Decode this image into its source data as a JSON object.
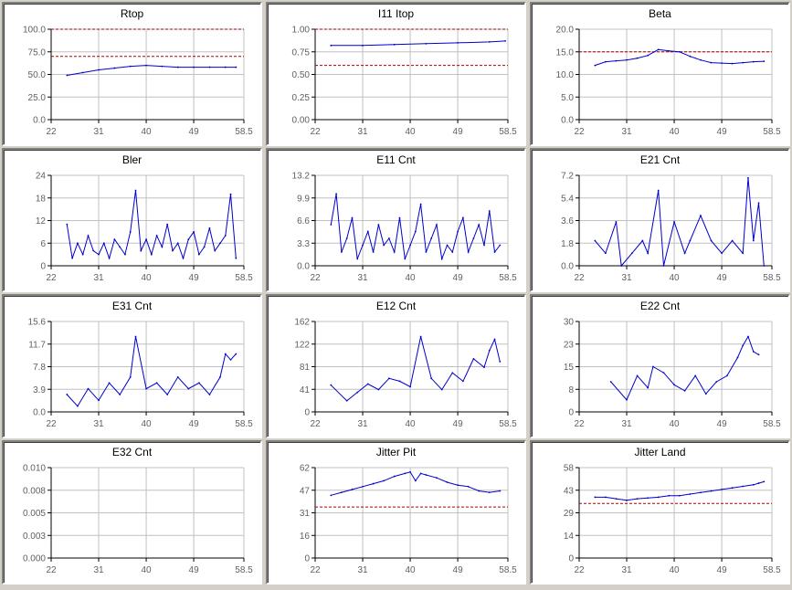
{
  "window": {
    "background": "#d4d0c8"
  },
  "style": {
    "line_color": "#0000cc",
    "limit_color": "#aa0000",
    "grid_color": "#c0c0c0",
    "axis_color": "#000000"
  },
  "chart_data": [
    {
      "type": "line",
      "title": "Rtop",
      "xticks": [
        "22",
        "31",
        "40",
        "49",
        "58.5"
      ],
      "xlim": [
        22,
        58.5
      ],
      "yticks": [
        "100.0",
        "75.0",
        "50.0",
        "25.0",
        "0.0"
      ],
      "ylim": [
        0,
        100
      ],
      "limits": [
        100,
        70
      ],
      "series": [
        {
          "x": [
            25,
            28,
            31,
            34,
            37,
            40,
            43,
            46,
            49,
            52,
            55,
            57
          ],
          "y": [
            49,
            52,
            55,
            57,
            59,
            60,
            59,
            58,
            58,
            58,
            58,
            58
          ]
        }
      ]
    },
    {
      "type": "line",
      "title": "I11 Itop",
      "xticks": [
        "22",
        "31",
        "40",
        "49",
        "58.5"
      ],
      "xlim": [
        22,
        58.5
      ],
      "yticks": [
        "1.00",
        "0.75",
        "0.50",
        "0.25",
        "0.00"
      ],
      "ylim": [
        0,
        1
      ],
      "limits": [
        1.0,
        0.6
      ],
      "series": [
        {
          "x": [
            25,
            31,
            37,
            43,
            49,
            55,
            58
          ],
          "y": [
            0.82,
            0.82,
            0.83,
            0.84,
            0.85,
            0.86,
            0.87
          ]
        }
      ]
    },
    {
      "type": "line",
      "title": "Beta",
      "xticks": [
        "22",
        "31",
        "40",
        "49",
        "58.5"
      ],
      "xlim": [
        22,
        58.5
      ],
      "yticks": [
        "20.0",
        "15.0",
        "10.0",
        "5.0",
        "0.0"
      ],
      "ylim": [
        0,
        20
      ],
      "limits": [
        15
      ],
      "series": [
        {
          "x": [
            25,
            27,
            29,
            31,
            33,
            35,
            37,
            39,
            41,
            43,
            45,
            47,
            49,
            51,
            53,
            55,
            57
          ],
          "y": [
            12,
            12.8,
            13,
            13.2,
            13.6,
            14.2,
            15.5,
            15.2,
            15,
            14,
            13.2,
            12.6,
            12.5,
            12.4,
            12.6,
            12.8,
            12.9
          ]
        }
      ]
    },
    {
      "type": "line",
      "title": "Bler",
      "xticks": [
        "22",
        "31",
        "40",
        "49",
        "58.5"
      ],
      "xlim": [
        22,
        58.5
      ],
      "yticks": [
        "24",
        "18",
        "12",
        "6",
        "0"
      ],
      "ylim": [
        0,
        24
      ],
      "series": [
        {
          "x": [
            25,
            26,
            27,
            28,
            29,
            30,
            31,
            32,
            33,
            34,
            35,
            36,
            37,
            38,
            39,
            40,
            41,
            42,
            43,
            44,
            45,
            46,
            47,
            48,
            49,
            50,
            51,
            52,
            53,
            54,
            55,
            56,
            57
          ],
          "y": [
            11,
            2,
            6,
            3,
            8,
            4,
            3,
            6,
            2,
            7,
            5,
            3,
            9,
            20,
            4,
            7,
            3,
            8,
            5,
            11,
            4,
            6,
            2,
            7,
            9,
            3,
            5,
            10,
            4,
            6,
            8,
            19,
            2
          ]
        }
      ]
    },
    {
      "type": "line",
      "title": "E11 Cnt",
      "xticks": [
        "22",
        "31",
        "40",
        "49",
        "58.5"
      ],
      "xlim": [
        22,
        58.5
      ],
      "yticks": [
        "13.2",
        "9.9",
        "6.6",
        "3.3",
        "0.0"
      ],
      "ylim": [
        0,
        13.2
      ],
      "series": [
        {
          "x": [
            25,
            26,
            27,
            28,
            29,
            30,
            31,
            32,
            33,
            34,
            35,
            36,
            37,
            38,
            39,
            40,
            41,
            42,
            43,
            44,
            45,
            46,
            47,
            48,
            49,
            50,
            51,
            52,
            53,
            54,
            55,
            56,
            57
          ],
          "y": [
            6,
            10.5,
            2,
            4,
            7,
            1,
            3,
            5,
            2,
            6,
            3,
            4,
            2,
            7,
            1,
            3,
            5,
            9,
            2,
            4,
            6,
            1,
            3,
            2,
            5,
            7,
            2,
            4,
            6,
            3,
            8,
            2,
            3
          ]
        }
      ]
    },
    {
      "type": "line",
      "title": "E21 Cnt",
      "xticks": [
        "22",
        "31",
        "40",
        "49",
        "58.5"
      ],
      "xlim": [
        22,
        58.5
      ],
      "yticks": [
        "7.2",
        "5.4",
        "3.6",
        "1.8",
        "0.0"
      ],
      "ylim": [
        0,
        7.2
      ],
      "series": [
        {
          "x": [
            25,
            27,
            29,
            30,
            32,
            34,
            35,
            37,
            38,
            40,
            42,
            43,
            45,
            47,
            49,
            51,
            53,
            54,
            55,
            56,
            57
          ],
          "y": [
            2,
            1,
            3.5,
            0,
            1,
            2,
            1,
            6,
            0,
            3.5,
            1,
            2,
            4,
            2,
            1,
            2,
            1,
            7,
            2,
            5,
            0
          ]
        }
      ]
    },
    {
      "type": "line",
      "title": "E31 Cnt",
      "xticks": [
        "22",
        "31",
        "40",
        "49",
        "58.5"
      ],
      "xlim": [
        22,
        58.5
      ],
      "yticks": [
        "15.6",
        "11.7",
        "7.8",
        "3.9",
        "0.0"
      ],
      "ylim": [
        0,
        15.6
      ],
      "series": [
        {
          "x": [
            25,
            27,
            29,
            31,
            33,
            35,
            37,
            38,
            40,
            42,
            44,
            46,
            48,
            50,
            52,
            54,
            55,
            56,
            57
          ],
          "y": [
            3,
            1,
            4,
            2,
            5,
            3,
            6,
            13,
            4,
            5,
            3,
            6,
            4,
            5,
            3,
            6,
            10,
            9,
            10
          ]
        }
      ]
    },
    {
      "type": "line",
      "title": "E12 Cnt",
      "xticks": [
        "22",
        "31",
        "40",
        "49",
        "58.5"
      ],
      "xlim": [
        22,
        58.5
      ],
      "yticks": [
        "162",
        "122",
        "81",
        "41",
        "0"
      ],
      "ylim": [
        0,
        162
      ],
      "series": [
        {
          "x": [
            25,
            28,
            30,
            32,
            34,
            36,
            38,
            40,
            42,
            44,
            46,
            48,
            50,
            52,
            54,
            55,
            56,
            57
          ],
          "y": [
            48,
            20,
            35,
            50,
            40,
            60,
            55,
            45,
            135,
            60,
            40,
            70,
            55,
            95,
            80,
            110,
            130,
            90
          ]
        }
      ]
    },
    {
      "type": "line",
      "title": "E22 Cnt",
      "xticks": [
        "22",
        "31",
        "40",
        "49",
        "58.5"
      ],
      "xlim": [
        22,
        58.5
      ],
      "yticks": [
        "30",
        "23",
        "15",
        "8",
        "0"
      ],
      "ylim": [
        0,
        30
      ],
      "series": [
        {
          "x": [
            28,
            31,
            33,
            35,
            36,
            38,
            40,
            42,
            44,
            46,
            48,
            50,
            52,
            53,
            54,
            55,
            56
          ],
          "y": [
            10,
            4,
            12,
            8,
            15,
            13,
            9,
            7,
            12,
            6,
            10,
            12,
            18,
            22,
            25,
            20,
            19
          ]
        }
      ]
    },
    {
      "type": "line",
      "title": "E32 Cnt",
      "xticks": [
        "22",
        "31",
        "40",
        "49",
        "58.5"
      ],
      "xlim": [
        22,
        58.5
      ],
      "yticks": [
        "0.010",
        "0.008",
        "0.005",
        "0.003",
        "0.000"
      ],
      "ylim": [
        0,
        0.01
      ],
      "series": []
    },
    {
      "type": "line",
      "title": "Jitter Pit",
      "xticks": [
        "22",
        "31",
        "40",
        "49",
        "58.5"
      ],
      "xlim": [
        22,
        58.5
      ],
      "yticks": [
        "62",
        "47",
        "31",
        "16",
        "0"
      ],
      "ylim": [
        0,
        62
      ],
      "limits": [
        35
      ],
      "series": [
        {
          "x": [
            25,
            27,
            29,
            31,
            33,
            35,
            37,
            39,
            40,
            41,
            42,
            43,
            45,
            47,
            49,
            51,
            53,
            55,
            57
          ],
          "y": [
            43,
            45,
            47,
            49,
            51,
            53,
            56,
            58,
            59,
            53,
            58,
            57,
            55,
            52,
            50,
            49,
            46,
            45,
            46
          ]
        }
      ]
    },
    {
      "type": "line",
      "title": "Jitter Land",
      "xticks": [
        "22",
        "31",
        "40",
        "49",
        "58.5"
      ],
      "xlim": [
        22,
        58.5
      ],
      "yticks": [
        "58",
        "43",
        "29",
        "14",
        "0"
      ],
      "ylim": [
        0,
        58
      ],
      "limits": [
        35
      ],
      "series": [
        {
          "x": [
            25,
            27,
            29,
            31,
            33,
            35,
            37,
            39,
            41,
            43,
            45,
            47,
            49,
            51,
            53,
            55,
            56,
            57
          ],
          "y": [
            39,
            39,
            38,
            37,
            38,
            38.5,
            39,
            40,
            40,
            41,
            42,
            43,
            44,
            45,
            46,
            47,
            48,
            49
          ]
        }
      ]
    }
  ]
}
